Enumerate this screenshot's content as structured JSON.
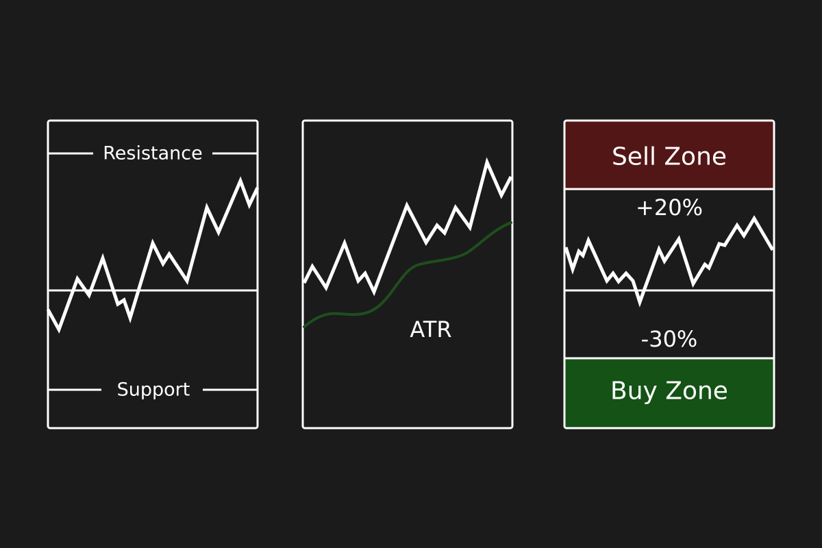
{
  "panels": {
    "support_resistance": {
      "resistance_label": "Resistance",
      "support_label": "Support"
    },
    "atr": {
      "indicator_label": "ATR",
      "indicator_color": "#1d4f1d"
    },
    "zones": {
      "sell_zone_label": "Sell Zone",
      "sell_zone_color": "#531616",
      "upper_pct_label": "+20%",
      "lower_pct_label": "-30%",
      "buy_zone_label": "Buy Zone",
      "buy_zone_color": "#145216"
    }
  },
  "colors": {
    "background": "#1b1b1b",
    "foreground": "#ffffff"
  }
}
